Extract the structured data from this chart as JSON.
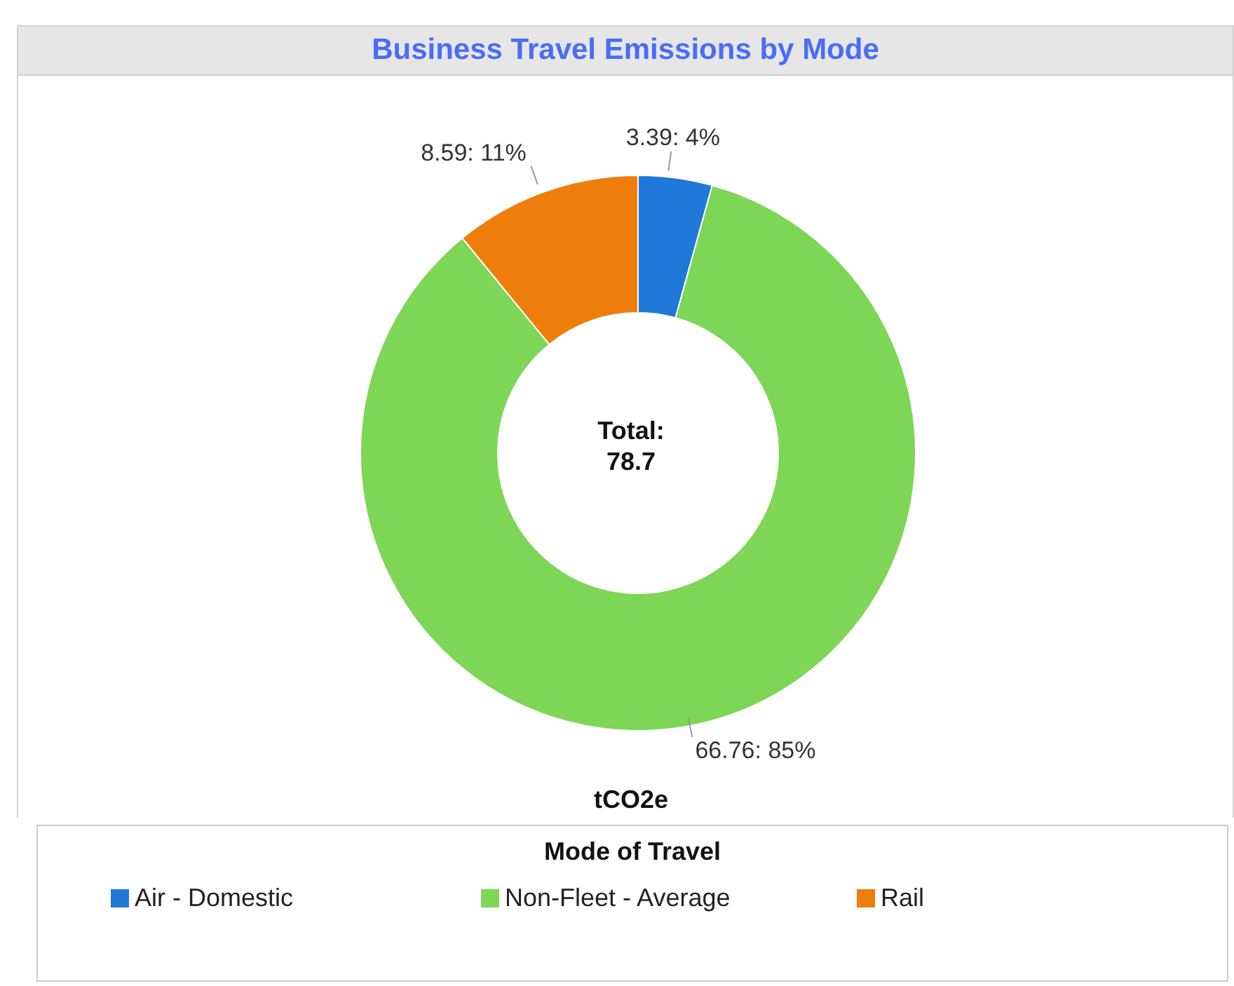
{
  "chart_data": {
    "type": "donut",
    "title": "Business Travel Emissions by Mode",
    "xlabel": "tCO2e",
    "legend_title": "Mode of Travel",
    "legend": "bottom",
    "categories": [
      "Air - Domestic",
      "Non-Fleet - Average",
      "Rail"
    ],
    "values": [
      3.39,
      66.76,
      8.59
    ],
    "colors": [
      "#1f78d8",
      "#7dd655",
      "#ef7d0c"
    ],
    "value_labels": [
      "3.39: 4%",
      "66.76: 85%",
      "8.59: 11%"
    ],
    "annotations": [
      "Total:",
      "78.7"
    ]
  }
}
